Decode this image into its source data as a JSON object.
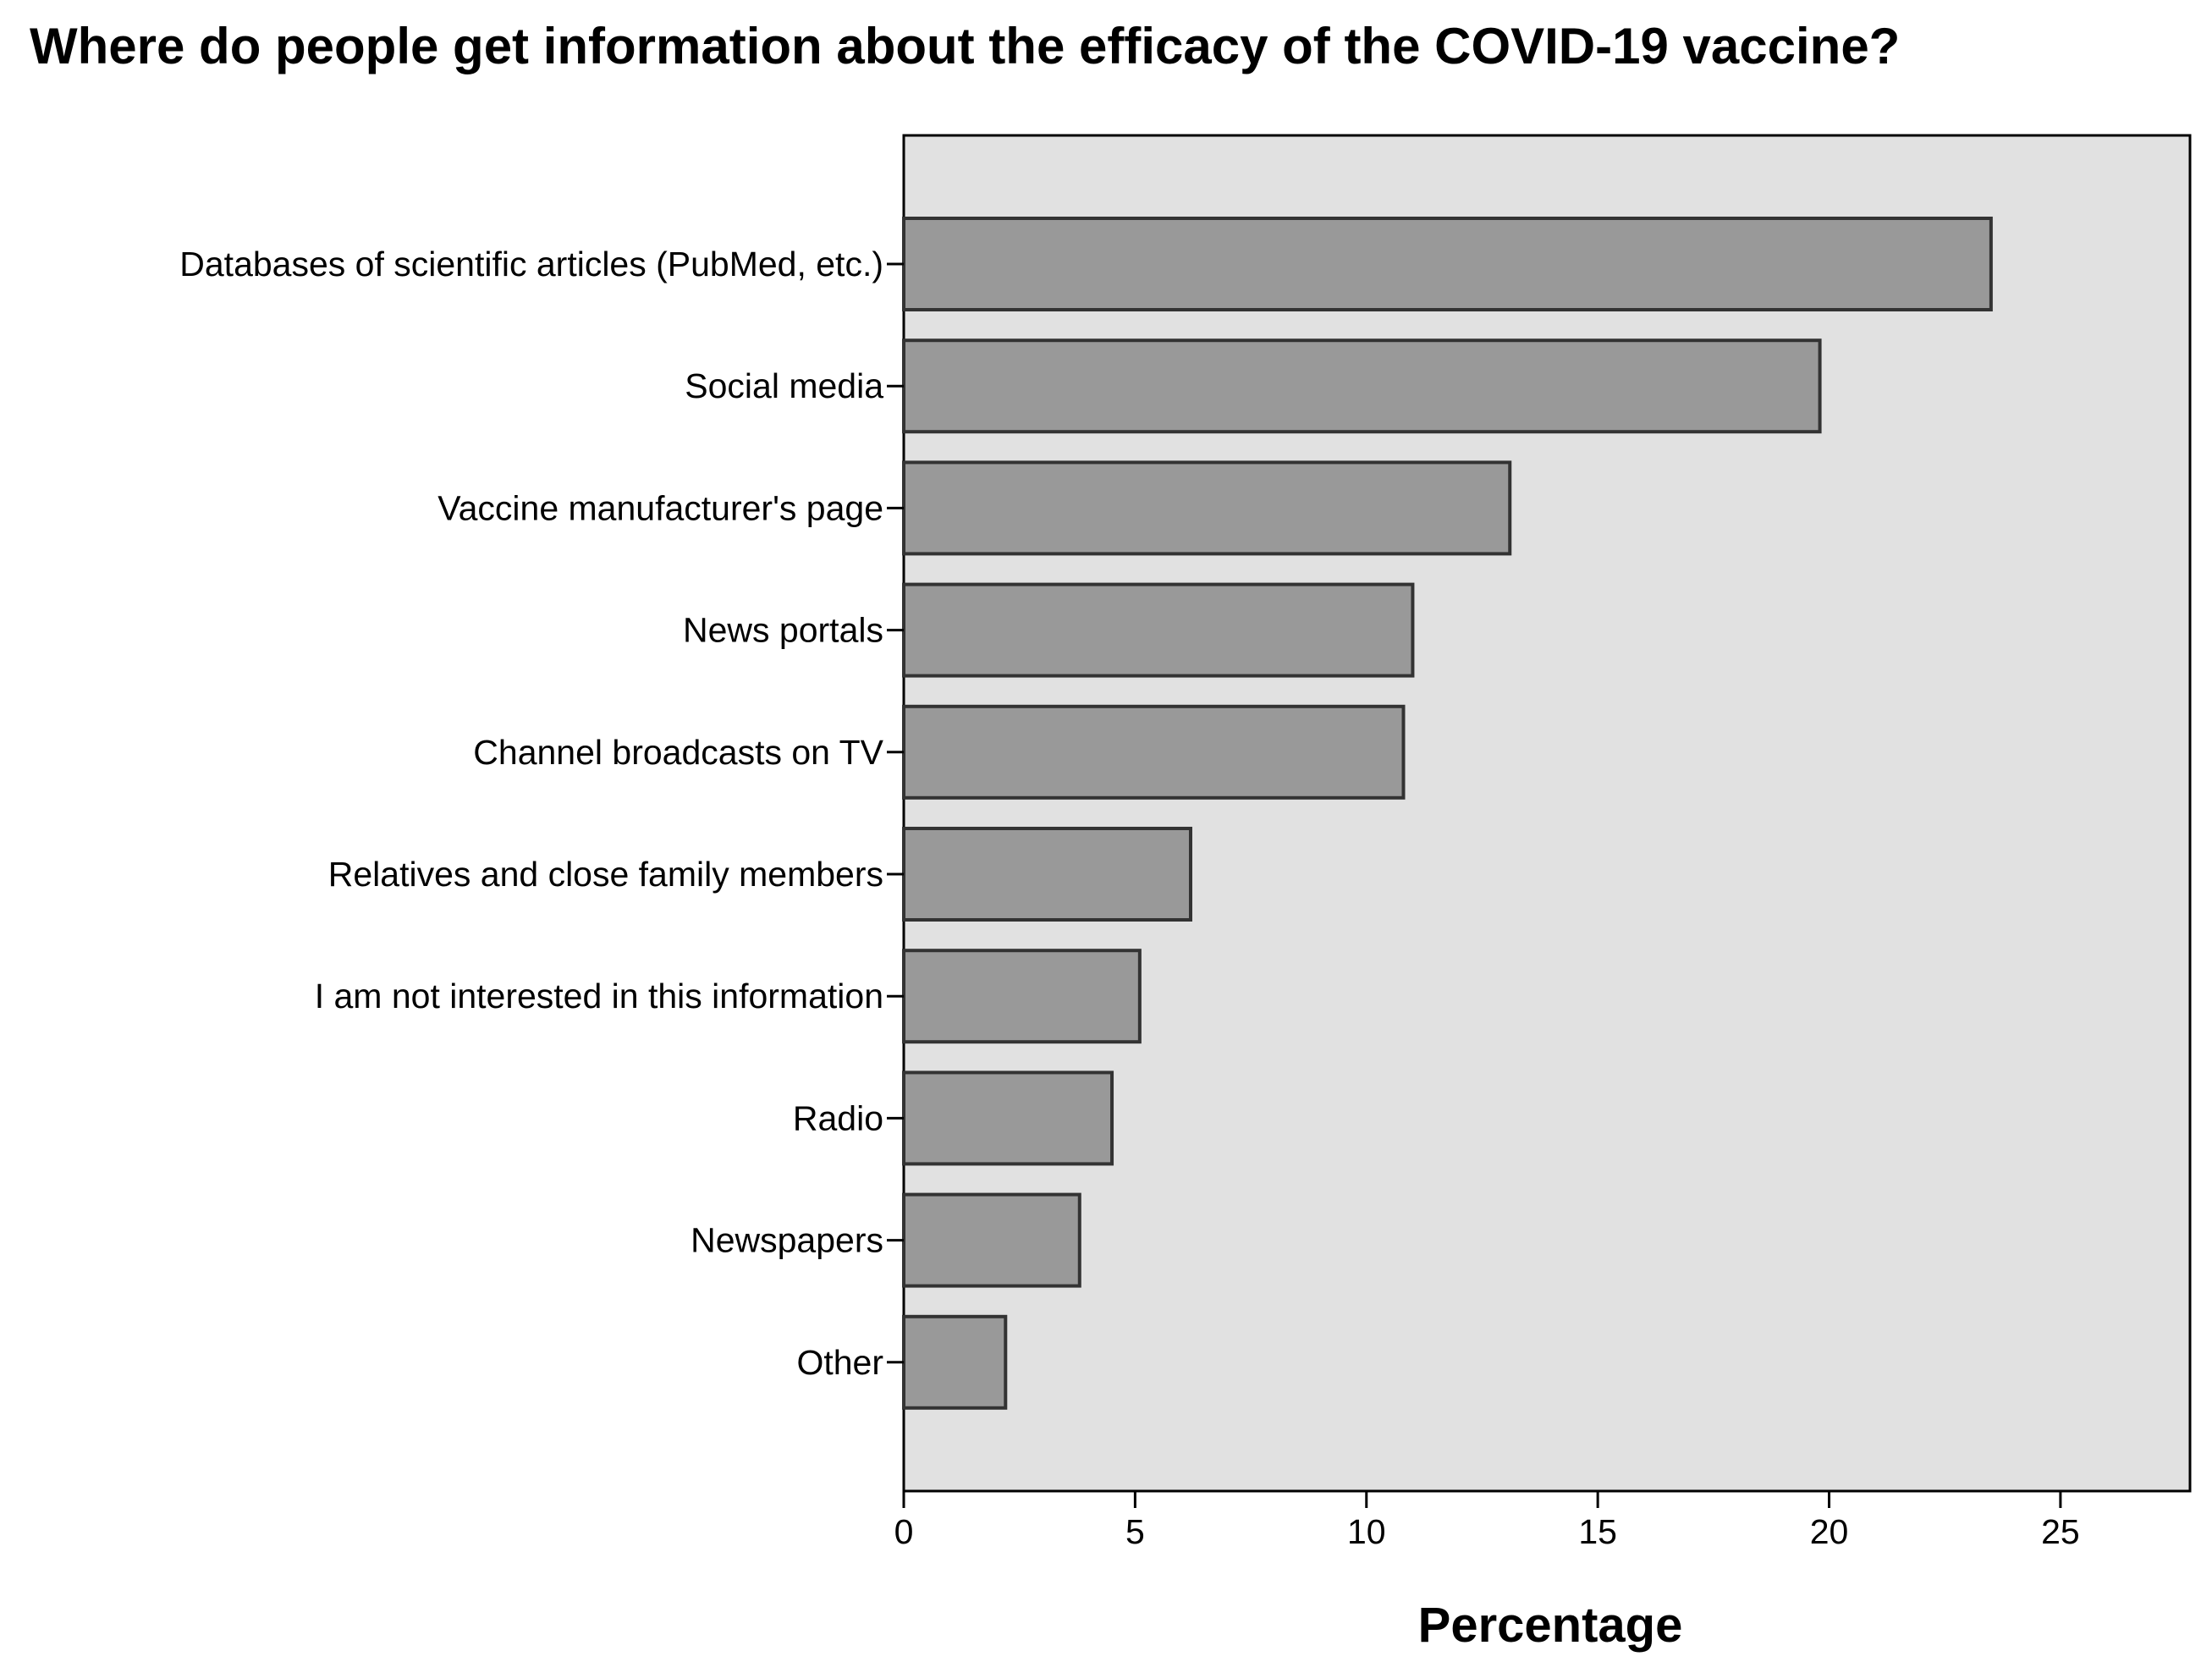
{
  "chart_data": {
    "type": "bar",
    "orientation": "horizontal",
    "title": "Where do people get information about the efficacy of the COVID-19 vaccine?",
    "xlabel": "Percentage",
    "ylabel": "",
    "categories": [
      "Databases of scientific articles (PubMed, etc.)",
      "Social media",
      "Vaccine manufacturer's page",
      "News portals",
      "Channel broadcasts on TV",
      "Relatives and close family members",
      "I am not interested in this information",
      "Radio",
      "Newspapers",
      "Other"
    ],
    "values": [
      23.5,
      19.8,
      13.1,
      11.0,
      10.8,
      6.2,
      5.1,
      4.5,
      3.8,
      2.2
    ],
    "xlim": [
      0,
      27.8
    ],
    "xticks": [
      0,
      5,
      10,
      15,
      20,
      25
    ],
    "grid": false,
    "colors": {
      "plot_background": "#e1e1e1",
      "bar_fill": "#999999",
      "bar_stroke": "#333333",
      "axis": "#000000"
    }
  }
}
